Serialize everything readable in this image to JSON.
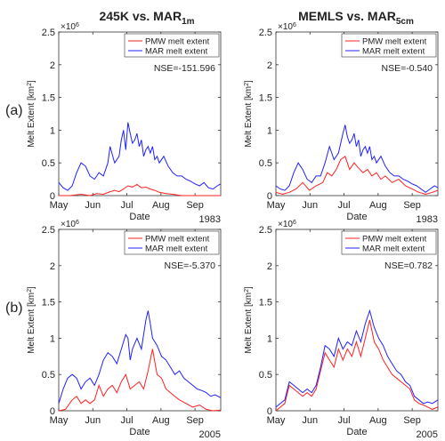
{
  "column_titles": [
    {
      "main": "245K vs. MAR",
      "sub": "1m"
    },
    {
      "main": "MEMLS vs. MAR",
      "sub": "5cm"
    }
  ],
  "row_labels": [
    "(a)",
    "(b)"
  ],
  "colors": {
    "pmw": "#ff2020",
    "mar": "#2020ff"
  },
  "chart_data": [
    {
      "type": "line",
      "panel": "a-left",
      "year": "1983",
      "nse": "NSE=-151.596",
      "xlabel": "Date",
      "ylabel": "Melt Extent [km",
      "ylabel_sup": "2",
      "ylabel_tail": "]",
      "exponent": "×10",
      "exponent_sup": "6",
      "ylim": [
        0,
        2.5
      ],
      "yticks": [
        "0",
        "0.5",
        "1",
        "1.5",
        "2",
        "2.5"
      ],
      "xticks": [
        "May",
        "Jun",
        "Jul",
        "Aug",
        "Sep"
      ],
      "xlim": [
        0,
        145
      ],
      "legend": [
        "PMW melt extent",
        "MAR melt extent"
      ],
      "series": [
        {
          "name": "PMW melt extent",
          "color": "#ff2020",
          "x": [
            0,
            10,
            20,
            28,
            34,
            40,
            46,
            50,
            54,
            58,
            62,
            66,
            70,
            74,
            78,
            82,
            86,
            90,
            96,
            102,
            110,
            120,
            130,
            140,
            145
          ],
          "y": [
            0,
            0,
            0.02,
            0,
            0.03,
            0.02,
            0.06,
            0.08,
            0.06,
            0.1,
            0.15,
            0.13,
            0.17,
            0.12,
            0.13,
            0.1,
            0.08,
            0.05,
            0.03,
            0.02,
            0,
            0,
            0,
            0,
            0
          ]
        },
        {
          "name": "MAR melt extent",
          "color": "#2020ff",
          "x": [
            0,
            4,
            8,
            12,
            16,
            20,
            24,
            28,
            32,
            36,
            40,
            44,
            46,
            50,
            54,
            56,
            58,
            60,
            62,
            64,
            66,
            68,
            70,
            72,
            74,
            76,
            78,
            80,
            82,
            84,
            86,
            88,
            90,
            94,
            98,
            102,
            106,
            110,
            114,
            118,
            122,
            126,
            130,
            134,
            138,
            142,
            145
          ],
          "y": [
            0.2,
            0.12,
            0.08,
            0.15,
            0.35,
            0.5,
            0.45,
            0.3,
            0.25,
            0.35,
            0.3,
            0.5,
            0.75,
            0.5,
            0.6,
            0.85,
            1.0,
            0.7,
            1.12,
            0.95,
            0.8,
            0.85,
            0.95,
            0.75,
            0.85,
            0.6,
            0.7,
            0.75,
            0.65,
            0.75,
            0.55,
            0.6,
            0.5,
            0.6,
            0.45,
            0.35,
            0.3,
            0.3,
            0.25,
            0.22,
            0.18,
            0.15,
            0.2,
            0.12,
            0.1,
            0.15,
            0.18
          ]
        }
      ]
    },
    {
      "type": "line",
      "panel": "a-right",
      "year": "1983",
      "nse": "NSE=-0.540",
      "xlabel": "Date",
      "ylabel": "Melt Extent [km",
      "ylabel_sup": "2",
      "ylabel_tail": "]",
      "exponent": "×10",
      "exponent_sup": "6",
      "ylim": [
        0,
        2.5
      ],
      "yticks": [
        "0",
        "0.5",
        "1",
        "1.5",
        "2",
        "2.5"
      ],
      "xticks": [
        "May",
        "Jun",
        "Jul",
        "Aug",
        "Sep"
      ],
      "xlim": [
        0,
        145
      ],
      "legend": [
        "PMW melt extent",
        "MAR melt extent"
      ],
      "series": [
        {
          "name": "PMW melt extent",
          "color": "#ff2020",
          "x": [
            0,
            6,
            12,
            18,
            24,
            30,
            36,
            42,
            46,
            50,
            54,
            58,
            62,
            64,
            66,
            70,
            74,
            78,
            82,
            86,
            90,
            94,
            98,
            104,
            110,
            116,
            122,
            128,
            134,
            140,
            145
          ],
          "y": [
            0.05,
            0.02,
            0.05,
            0.1,
            0.2,
            0.08,
            0.15,
            0.2,
            0.35,
            0.3,
            0.4,
            0.55,
            0.6,
            0.5,
            0.4,
            0.5,
            0.42,
            0.35,
            0.4,
            0.3,
            0.35,
            0.25,
            0.3,
            0.2,
            0.25,
            0.15,
            0.1,
            0.05,
            0.02,
            0.05,
            0.08
          ]
        },
        {
          "name": "MAR melt extent",
          "color": "#2020ff",
          "x": [
            0,
            4,
            8,
            12,
            16,
            20,
            24,
            28,
            32,
            36,
            40,
            44,
            48,
            52,
            56,
            60,
            62,
            64,
            66,
            68,
            70,
            72,
            74,
            76,
            78,
            80,
            82,
            84,
            86,
            88,
            90,
            94,
            98,
            102,
            106,
            110,
            114,
            118,
            122,
            126,
            130,
            134,
            138,
            142,
            145
          ],
          "y": [
            0.15,
            0.1,
            0.08,
            0.15,
            0.35,
            0.5,
            0.4,
            0.25,
            0.2,
            0.3,
            0.3,
            0.5,
            0.75,
            0.55,
            0.65,
            0.95,
            1.08,
            0.9,
            0.8,
            0.85,
            0.95,
            0.75,
            0.85,
            0.6,
            0.7,
            0.75,
            0.65,
            0.75,
            0.55,
            0.6,
            0.5,
            0.6,
            0.45,
            0.35,
            0.3,
            0.3,
            0.25,
            0.22,
            0.18,
            0.15,
            0.1,
            0.05,
            0.1,
            0.15,
            0.12
          ]
        }
      ]
    },
    {
      "type": "line",
      "panel": "b-left",
      "year": "2005",
      "nse": "NSE=-5.370",
      "xlabel": "Date",
      "ylabel": "Melt Extent [km",
      "ylabel_sup": "2",
      "ylabel_tail": "]",
      "exponent": "×10",
      "exponent_sup": "6",
      "ylim": [
        0,
        2.5
      ],
      "yticks": [
        "0",
        "0.5",
        "1",
        "1.5",
        "2",
        "2.5"
      ],
      "xticks": [
        "May",
        "Jun",
        "Jul",
        "Aug",
        "Sep"
      ],
      "xlim": [
        0,
        145
      ],
      "legend": [
        "PMW melt extent",
        "MAR melt extent"
      ],
      "series": [
        {
          "name": "PMW melt extent",
          "color": "#ff2020",
          "x": [
            0,
            6,
            12,
            16,
            20,
            24,
            28,
            32,
            36,
            40,
            44,
            48,
            52,
            56,
            60,
            64,
            68,
            72,
            76,
            80,
            84,
            88,
            92,
            96,
            100,
            104,
            108,
            114,
            120,
            126,
            132,
            138,
            145
          ],
          "y": [
            0,
            0.02,
            0.15,
            0.2,
            0.1,
            0.15,
            0.1,
            0.15,
            0.35,
            0.2,
            0.3,
            0.35,
            0.25,
            0.4,
            0.5,
            0.3,
            0.35,
            0.4,
            0.3,
            0.55,
            0.85,
            0.5,
            0.45,
            0.3,
            0.25,
            0.2,
            0.15,
            0.1,
            0.05,
            0.08,
            0.02,
            0,
            0.01
          ]
        },
        {
          "name": "MAR melt extent",
          "color": "#2020ff",
          "x": [
            0,
            4,
            8,
            12,
            16,
            20,
            24,
            28,
            32,
            36,
            40,
            44,
            48,
            52,
            56,
            60,
            62,
            64,
            66,
            70,
            74,
            78,
            80,
            82,
            84,
            88,
            92,
            96,
            100,
            104,
            108,
            112,
            116,
            120,
            124,
            128,
            132,
            136,
            140,
            145
          ],
          "y": [
            0.1,
            0.3,
            0.45,
            0.5,
            0.45,
            0.3,
            0.4,
            0.45,
            0.35,
            0.5,
            0.7,
            0.8,
            0.75,
            0.65,
            0.85,
            1.05,
            1.0,
            0.7,
            0.85,
            1.0,
            0.85,
            1.25,
            1.38,
            1.2,
            1.0,
            0.9,
            0.75,
            0.7,
            0.6,
            0.5,
            0.55,
            0.45,
            0.4,
            0.35,
            0.3,
            0.28,
            0.25,
            0.2,
            0.22,
            0.18
          ]
        }
      ]
    },
    {
      "type": "line",
      "panel": "b-right",
      "year": "2005",
      "nse": "NSE=0.782",
      "xlabel": "Date",
      "ylabel": "Melt Extent [km",
      "ylabel_sup": "2",
      "ylabel_tail": "]",
      "exponent": "×10",
      "exponent_sup": "6",
      "ylim": [
        0,
        2.5
      ],
      "yticks": [
        "0",
        "0.5",
        "1",
        "1.5",
        "2",
        "2.5"
      ],
      "xticks": [
        "May",
        "Jun",
        "Jul",
        "Aug",
        "Sep"
      ],
      "xlim": [
        0,
        145
      ],
      "legend": [
        "PMW melt extent",
        "MAR melt extent"
      ],
      "series": [
        {
          "name": "PMW melt extent",
          "color": "#ff2020",
          "x": [
            0,
            4,
            8,
            12,
            16,
            20,
            24,
            28,
            32,
            36,
            40,
            44,
            48,
            52,
            56,
            60,
            64,
            68,
            72,
            76,
            80,
            84,
            88,
            92,
            96,
            100,
            104,
            108,
            112,
            116,
            120,
            124,
            128,
            132,
            136,
            140,
            145
          ],
          "y": [
            0,
            0.05,
            0.1,
            0.35,
            0.3,
            0.25,
            0.2,
            0.25,
            0.2,
            0.3,
            0.55,
            0.8,
            0.7,
            0.6,
            0.85,
            0.7,
            0.85,
            0.75,
            0.95,
            0.75,
            1.0,
            1.25,
            0.95,
            0.85,
            0.7,
            0.6,
            0.5,
            0.45,
            0.4,
            0.35,
            0.3,
            0.15,
            0.1,
            0.08,
            0.05,
            0.02,
            0.05
          ]
        },
        {
          "name": "MAR melt extent",
          "color": "#2020ff",
          "x": [
            0,
            4,
            8,
            12,
            16,
            20,
            24,
            28,
            32,
            36,
            40,
            44,
            48,
            52,
            56,
            60,
            64,
            68,
            72,
            76,
            80,
            84,
            88,
            92,
            96,
            100,
            104,
            108,
            112,
            116,
            120,
            124,
            128,
            132,
            136,
            140,
            145
          ],
          "y": [
            0.05,
            0.1,
            0.15,
            0.4,
            0.35,
            0.3,
            0.25,
            0.3,
            0.25,
            0.35,
            0.6,
            0.9,
            0.85,
            0.75,
            1.0,
            0.85,
            0.95,
            0.9,
            1.1,
            0.95,
            1.2,
            1.38,
            1.15,
            1.0,
            0.9,
            0.75,
            0.65,
            0.55,
            0.5,
            0.4,
            0.35,
            0.2,
            0.15,
            0.1,
            0.12,
            0.1,
            0.15
          ]
        }
      ]
    }
  ]
}
